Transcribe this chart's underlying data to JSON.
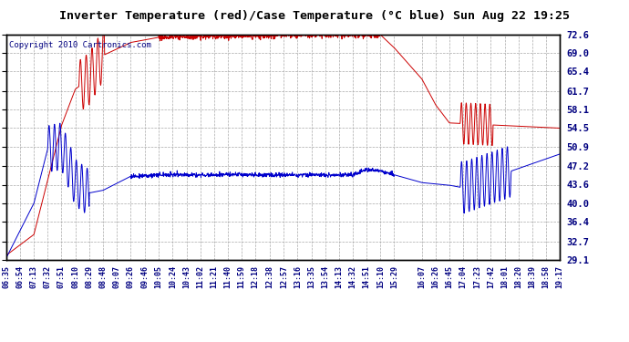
{
  "title": "Inverter Temperature (red)/Case Temperature (°C blue) Sun Aug 22 19:25",
  "copyright": "Copyright 2010 Cartronics.com",
  "yticks": [
    29.1,
    32.7,
    36.4,
    40.0,
    43.6,
    47.2,
    50.9,
    54.5,
    58.1,
    61.7,
    65.4,
    69.0,
    72.6
  ],
  "ymin": 29.1,
  "ymax": 72.6,
  "background_color": "#ffffff",
  "plot_bg_color": "#ffffff",
  "grid_color": "#aaaaaa",
  "red_color": "#cc0000",
  "blue_color": "#0000cc",
  "x_times": [
    "06:35",
    "06:54",
    "07:13",
    "07:32",
    "07:51",
    "08:10",
    "08:29",
    "08:48",
    "09:07",
    "09:26",
    "09:46",
    "10:05",
    "10:24",
    "10:43",
    "11:02",
    "11:21",
    "11:40",
    "11:59",
    "12:18",
    "12:38",
    "12:57",
    "13:16",
    "13:35",
    "13:54",
    "14:13",
    "14:32",
    "14:51",
    "15:10",
    "15:29",
    "16:07",
    "16:26",
    "16:45",
    "17:04",
    "17:23",
    "17:42",
    "18:01",
    "18:20",
    "18:39",
    "18:58",
    "19:17"
  ]
}
